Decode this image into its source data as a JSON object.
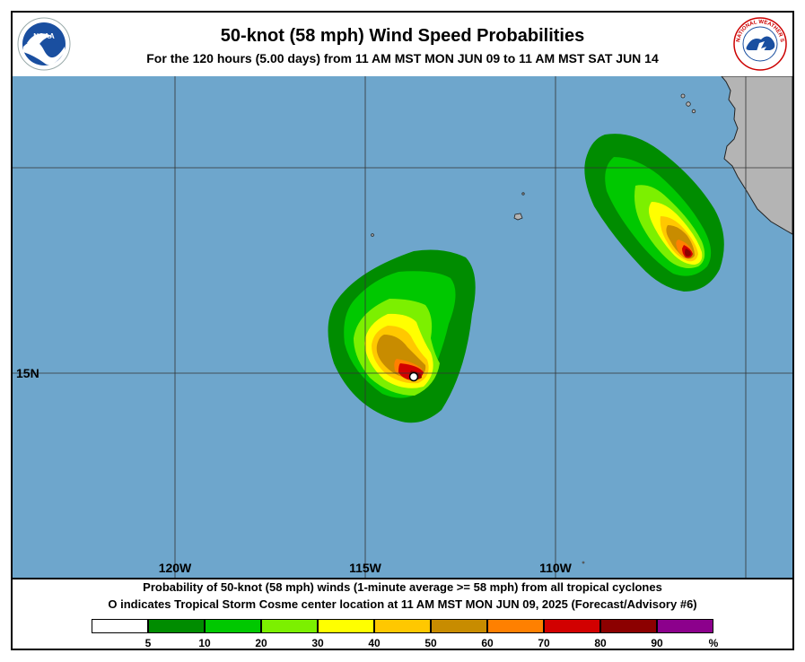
{
  "header": {
    "title": "50-knot (58 mph) Wind Speed Probabilities",
    "subtitle": "For the 120 hours (5.00 days) from 11 AM MST MON JUN 09 to 11 AM MST SAT JUN 14",
    "noaa_logo_text": "NOAA",
    "nws_logo_text": "NATIONAL WEATHER SERVICE"
  },
  "map": {
    "longitude_labels": [
      "120W",
      "115W",
      "110W"
    ],
    "latitude_labels": [
      "15N"
    ],
    "colors": {
      "ocean": "#6ea6cc",
      "land": "#b4b4b4",
      "grid": "#333333"
    }
  },
  "footer": {
    "line1": "Probability of 50-knot (58 mph) winds (1-minute average >= 58 mph) from all tropical cyclones",
    "line2": "indicates Tropical Storm Cosme center location at 11 AM MST MON JUN 09, 2025 (Forecast/Advisory #6)",
    "center_marker": "O"
  },
  "legend": {
    "unit": "%",
    "ticks": [
      "5",
      "10",
      "20",
      "30",
      "40",
      "50",
      "60",
      "70",
      "80",
      "90"
    ],
    "colors": [
      "#ffffff",
      "#008c00",
      "#00c800",
      "#7cf000",
      "#ffff00",
      "#ffc800",
      "#c88c00",
      "#ff8000",
      "#d20000",
      "#8c0000",
      "#8c008c"
    ]
  }
}
